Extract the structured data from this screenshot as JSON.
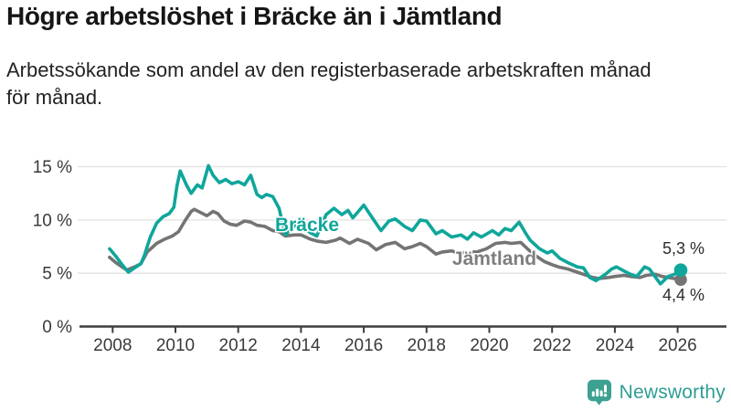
{
  "header": {
    "title": "Högre arbetslöshet i Bräcke än i Jämtland",
    "subtitle": "Arbetssökande som andel av den registerbaserade arbetskraften månad\nför månad."
  },
  "footer": {
    "brand": "Newsworthy",
    "brand_color": "#2E9E94",
    "logo_color": "#3DA091"
  },
  "chart_data": {
    "type": "line",
    "title": "Högre arbetslöshet i Bräcke än i Jämtland",
    "subtitle": "Arbetssökande som andel av den registerbaserade arbetskraften månad för månad.",
    "xlabel": "",
    "ylabel": "",
    "unit": "%",
    "xlim": [
      2007.6,
      2027.4
    ],
    "ylim": [
      0,
      16.5
    ],
    "grid": "horizontal",
    "legend_position": "inline-labels",
    "axis_color": "#3D3D3D",
    "grid_color": "#E2E2E2",
    "tick_label_color": "#3A3A3A",
    "value_label_color": "#2D2D2D",
    "x_ticks": [
      {
        "v": 2008,
        "label": "2008"
      },
      {
        "v": 2010,
        "label": "2010"
      },
      {
        "v": 2012,
        "label": "2012"
      },
      {
        "v": 2014,
        "label": "2014"
      },
      {
        "v": 2016,
        "label": "2016"
      },
      {
        "v": 2018,
        "label": "2018"
      },
      {
        "v": 2020,
        "label": "2020"
      },
      {
        "v": 2022,
        "label": "2022"
      },
      {
        "v": 2024,
        "label": "2024"
      },
      {
        "v": 2026,
        "label": "2026"
      }
    ],
    "y_ticks": [
      {
        "v": 0,
        "label": "0 %"
      },
      {
        "v": 5,
        "label": "5 %"
      },
      {
        "v": 10,
        "label": "10 %"
      },
      {
        "v": 15,
        "label": "15 %"
      }
    ],
    "series": [
      {
        "name": "Bräcke",
        "color": "#0FA69B",
        "label_color": "#0FA69B",
        "end_value": 5.3,
        "end_value_label": "5,3 %",
        "points": [
          [
            2007.9,
            7.3
          ],
          [
            2008.1,
            6.6
          ],
          [
            2008.3,
            5.8
          ],
          [
            2008.5,
            5.1
          ],
          [
            2008.7,
            5.5
          ],
          [
            2008.9,
            5.9
          ],
          [
            2009.0,
            6.6
          ],
          [
            2009.2,
            8.4
          ],
          [
            2009.4,
            9.7
          ],
          [
            2009.6,
            10.3
          ],
          [
            2009.8,
            10.6
          ],
          [
            2009.95,
            11.2
          ],
          [
            2010.05,
            13.2
          ],
          [
            2010.15,
            14.6
          ],
          [
            2010.35,
            13.3
          ],
          [
            2010.5,
            12.5
          ],
          [
            2010.7,
            13.3
          ],
          [
            2010.85,
            13.0
          ],
          [
            2011.05,
            15.1
          ],
          [
            2011.2,
            14.2
          ],
          [
            2011.4,
            13.5
          ],
          [
            2011.6,
            13.8
          ],
          [
            2011.8,
            13.4
          ],
          [
            2012.0,
            13.6
          ],
          [
            2012.2,
            13.3
          ],
          [
            2012.4,
            14.2
          ],
          [
            2012.6,
            12.4
          ],
          [
            2012.75,
            12.1
          ],
          [
            2012.9,
            12.4
          ],
          [
            2013.1,
            12.2
          ],
          [
            2013.3,
            11.1
          ],
          [
            2013.5,
            8.6
          ],
          [
            2013.7,
            9.2
          ],
          [
            2013.9,
            9.8
          ],
          [
            2014.1,
            9.3
          ],
          [
            2014.3,
            8.8
          ],
          [
            2014.5,
            8.5
          ],
          [
            2014.8,
            10.5
          ],
          [
            2015.05,
            11.1
          ],
          [
            2015.3,
            10.5
          ],
          [
            2015.5,
            10.9
          ],
          [
            2015.65,
            10.2
          ],
          [
            2015.8,
            10.7
          ],
          [
            2016.0,
            11.4
          ],
          [
            2016.25,
            10.3
          ],
          [
            2016.55,
            9.0
          ],
          [
            2016.8,
            9.9
          ],
          [
            2017.0,
            10.1
          ],
          [
            2017.3,
            9.4
          ],
          [
            2017.55,
            9.0
          ],
          [
            2017.8,
            10.0
          ],
          [
            2018.0,
            9.9
          ],
          [
            2018.3,
            8.7
          ],
          [
            2018.5,
            9.0
          ],
          [
            2018.8,
            8.4
          ],
          [
            2019.1,
            8.6
          ],
          [
            2019.3,
            8.2
          ],
          [
            2019.5,
            8.8
          ],
          [
            2019.75,
            8.4
          ],
          [
            2020.1,
            9.0
          ],
          [
            2020.3,
            8.6
          ],
          [
            2020.5,
            9.2
          ],
          [
            2020.7,
            9.0
          ],
          [
            2020.95,
            9.8
          ],
          [
            2021.15,
            8.8
          ],
          [
            2021.3,
            8.1
          ],
          [
            2021.6,
            7.3
          ],
          [
            2021.85,
            6.9
          ],
          [
            2022.0,
            7.1
          ],
          [
            2022.25,
            6.4
          ],
          [
            2022.5,
            6.0
          ],
          [
            2022.8,
            5.6
          ],
          [
            2023.0,
            5.5
          ],
          [
            2023.2,
            4.6
          ],
          [
            2023.4,
            4.3
          ],
          [
            2023.7,
            4.9
          ],
          [
            2023.9,
            5.4
          ],
          [
            2024.05,
            5.6
          ],
          [
            2024.3,
            5.2
          ],
          [
            2024.5,
            4.9
          ],
          [
            2024.7,
            4.7
          ],
          [
            2024.95,
            5.6
          ],
          [
            2025.1,
            5.4
          ],
          [
            2025.45,
            4.0
          ],
          [
            2025.7,
            4.7
          ],
          [
            2025.9,
            4.9
          ],
          [
            2026.1,
            5.3
          ]
        ]
      },
      {
        "name": "Jämtland",
        "color": "#747474",
        "label_color": "#7E7E7E",
        "end_value": 4.4,
        "end_value_label": "4,4 %",
        "points": [
          [
            2007.9,
            6.5
          ],
          [
            2008.1,
            6.0
          ],
          [
            2008.3,
            5.6
          ],
          [
            2008.45,
            5.3
          ],
          [
            2008.7,
            5.6
          ],
          [
            2008.9,
            5.9
          ],
          [
            2009.1,
            7.0
          ],
          [
            2009.4,
            7.8
          ],
          [
            2009.65,
            8.2
          ],
          [
            2009.9,
            8.5
          ],
          [
            2010.1,
            8.9
          ],
          [
            2010.3,
            9.9
          ],
          [
            2010.5,
            10.8
          ],
          [
            2010.6,
            11.0
          ],
          [
            2010.8,
            10.7
          ],
          [
            2011.0,
            10.4
          ],
          [
            2011.2,
            10.8
          ],
          [
            2011.35,
            10.6
          ],
          [
            2011.55,
            9.9
          ],
          [
            2011.75,
            9.6
          ],
          [
            2011.95,
            9.5
          ],
          [
            2012.2,
            9.9
          ],
          [
            2012.4,
            9.8
          ],
          [
            2012.6,
            9.5
          ],
          [
            2012.85,
            9.4
          ],
          [
            2013.1,
            9.0
          ],
          [
            2013.3,
            8.9
          ],
          [
            2013.5,
            8.5
          ],
          [
            2013.8,
            8.6
          ],
          [
            2014.0,
            8.6
          ],
          [
            2014.3,
            8.2
          ],
          [
            2014.55,
            8.0
          ],
          [
            2014.8,
            7.9
          ],
          [
            2015.1,
            8.1
          ],
          [
            2015.25,
            8.3
          ],
          [
            2015.55,
            7.8
          ],
          [
            2015.8,
            8.2
          ],
          [
            2016.15,
            7.8
          ],
          [
            2016.4,
            7.2
          ],
          [
            2016.7,
            7.7
          ],
          [
            2017.0,
            7.9
          ],
          [
            2017.3,
            7.3
          ],
          [
            2017.55,
            7.5
          ],
          [
            2017.8,
            7.8
          ],
          [
            2018.0,
            7.5
          ],
          [
            2018.3,
            6.8
          ],
          [
            2018.5,
            7.0
          ],
          [
            2018.8,
            7.1
          ],
          [
            2019.0,
            6.9
          ],
          [
            2019.3,
            7.0
          ],
          [
            2019.6,
            7.0
          ],
          [
            2019.9,
            7.3
          ],
          [
            2020.2,
            7.8
          ],
          [
            2020.5,
            7.9
          ],
          [
            2020.7,
            7.8
          ],
          [
            2021.0,
            7.9
          ],
          [
            2021.25,
            7.2
          ],
          [
            2021.5,
            6.6
          ],
          [
            2021.75,
            6.1
          ],
          [
            2022.0,
            5.8
          ],
          [
            2022.2,
            5.6
          ],
          [
            2022.5,
            5.4
          ],
          [
            2022.8,
            5.1
          ],
          [
            2023.0,
            4.9
          ],
          [
            2023.3,
            4.6
          ],
          [
            2023.5,
            4.5
          ],
          [
            2023.8,
            4.6
          ],
          [
            2024.0,
            4.7
          ],
          [
            2024.3,
            4.8
          ],
          [
            2024.5,
            4.7
          ],
          [
            2024.8,
            4.6
          ],
          [
            2025.0,
            4.8
          ],
          [
            2025.3,
            4.9
          ],
          [
            2025.5,
            4.7
          ],
          [
            2025.7,
            4.6
          ],
          [
            2025.9,
            4.5
          ],
          [
            2026.1,
            4.4
          ]
        ]
      }
    ]
  }
}
